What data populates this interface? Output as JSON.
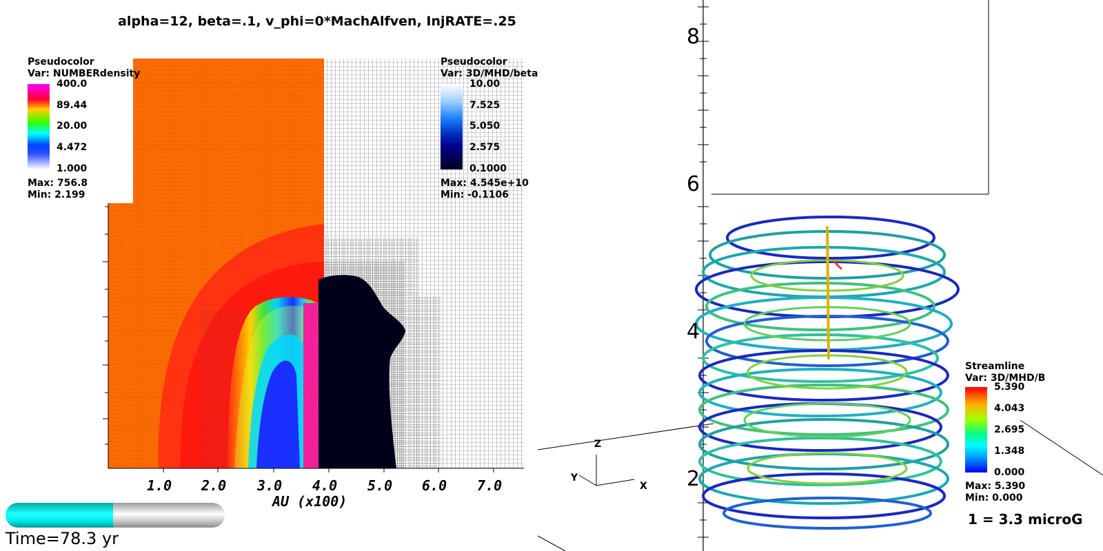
{
  "title": "alpha=12, beta=.1,  v_phi=0*MachAlfven, InjRATE=.25",
  "density_legend": {
    "heading": "Pseudocolor",
    "var": "Var: NUMBERdensity",
    "ticks": [
      "400.0",
      "89.44",
      "20.00",
      "4.472",
      "1.000"
    ],
    "max": "Max:  756.8",
    "min": "Min:  2.199"
  },
  "beta_legend": {
    "heading": "Pseudocolor",
    "var": "Var: 3D/MHD/beta",
    "ticks": [
      "10.00",
      "7.525",
      "5.050",
      "2.575",
      "0.1000"
    ],
    "max": "Max:  4.545e+10",
    "min": "Min: -0.1106"
  },
  "slice_plot": {
    "x_ticks": [
      "1.0",
      "2.0",
      "3.0",
      "4.0",
      "5.0",
      "6.0",
      "7.0"
    ],
    "x_label": "AU (x100)"
  },
  "time": {
    "label": "Time=78.3 yr",
    "progress": 0.49
  },
  "stream_legend": {
    "heading": "Streamline",
    "var": "Var: 3D/MHD/B",
    "ticks": [
      "5.390",
      "4.043",
      "2.695",
      "1.348",
      "0.000"
    ],
    "max": "Max:  5.390",
    "min": "Min:  0.000",
    "scale_note": "1 = 3.3 microG"
  },
  "axis3d": {
    "z_ticks": [
      "8",
      "6",
      "4",
      "2"
    ],
    "triad": {
      "x": "X",
      "y": "Y",
      "z": "Z"
    }
  },
  "colors": {
    "orange": "#ff6a00",
    "red": "#ff1a10",
    "beta_black": "#000018"
  }
}
